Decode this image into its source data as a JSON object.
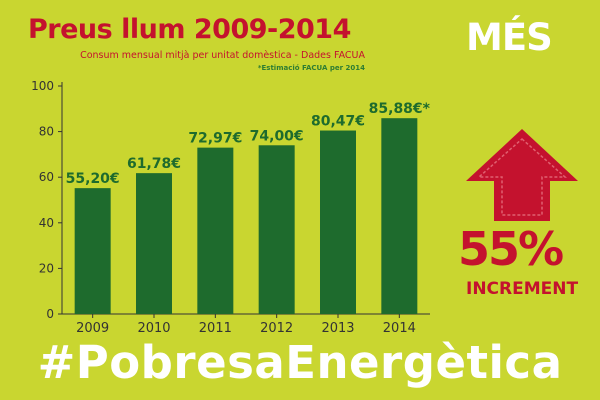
{
  "brand": {
    "logo_text": "MÉS"
  },
  "colors": {
    "background": "#c9d630",
    "bar": "#1e6b2d",
    "accent": "#c4122e",
    "white": "#ffffff"
  },
  "chart_data": {
    "type": "bar",
    "title": "Preus llum 2009-2014",
    "subtitle": "Consum mensual mitjà per unitat domèstica - Dades FACUA",
    "note": "*Estimació FACUA per 2014",
    "categories": [
      "2009",
      "2010",
      "2011",
      "2012",
      "2013",
      "2014"
    ],
    "values": [
      55.2,
      61.78,
      72.97,
      74.0,
      80.47,
      85.88
    ],
    "data_labels": [
      "55,20€",
      "61,78€",
      "72,97€",
      "74,00€",
      "80,47€",
      "85,88€*"
    ],
    "ylim": [
      0,
      100
    ],
    "yticks": [
      0,
      20,
      40,
      60,
      80,
      100
    ],
    "xlabel": "",
    "ylabel": "",
    "grid": false
  },
  "increment": {
    "percent": "55%",
    "label": "INCREMENT",
    "icon": "up-arrow-icon"
  },
  "hashtag": "#PobresaEnergètica"
}
